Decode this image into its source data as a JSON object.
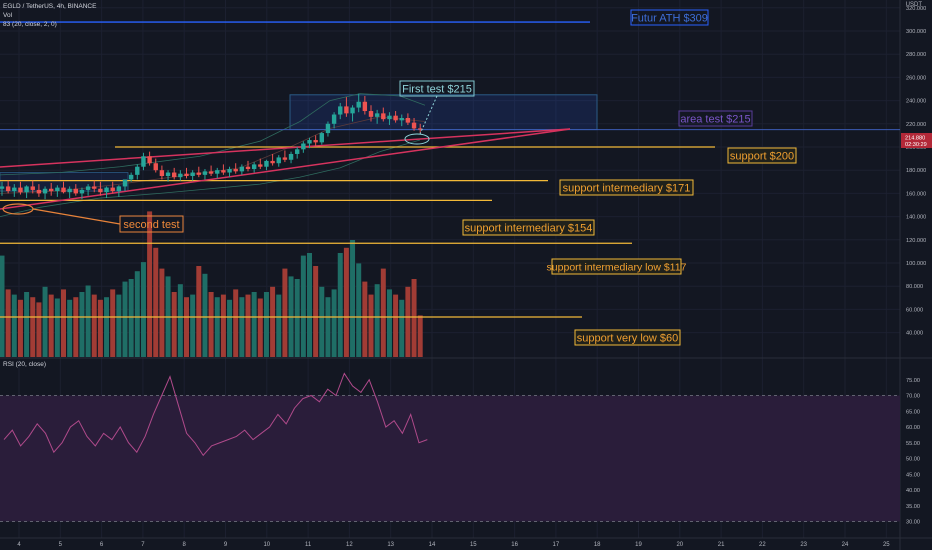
{
  "header": {
    "symbol_line": "EGLD / TetherUS, 4h, BINANCE",
    "vol_line": "Vol",
    "ma_line": "83 (20, close, 2, 0)"
  },
  "currency": "USDT",
  "rsi_label": "RSI (20, close)",
  "colors": {
    "background": "#131722",
    "bull": "#26a69a",
    "bear": "#ef5350",
    "vol_bull": "#1f6e66",
    "vol_bear": "#a13c35",
    "support_line": "#f2b938",
    "trend_line": "#d6335e",
    "ath_line": "#2962ff",
    "rsi_line": "#b04a8b",
    "rsi_band": "#2a1d3a",
    "box": "#2a5a85"
  },
  "price_axis": {
    "ticks": [
      "320.000",
      "300.000",
      "280.000",
      "260.000",
      "240.000",
      "220.000",
      "200.000",
      "180.000",
      "160.000",
      "140.000",
      "120.000",
      "100.000",
      "80.000",
      "60.000",
      "40.000"
    ],
    "current_price": "214.880",
    "countdown": "02:30:29"
  },
  "rsi_axis": {
    "ticks": [
      "75.00",
      "70.00",
      "65.00",
      "60.00",
      "55.00",
      "50.00",
      "45.00",
      "40.00",
      "35.00",
      "30.00"
    ]
  },
  "time_axis": {
    "ticks": [
      "4",
      "5",
      "6",
      "7",
      "8",
      "9",
      "10",
      "11",
      "12",
      "13",
      "14",
      "15",
      "16",
      "17",
      "18",
      "19",
      "20",
      "21",
      "22",
      "23",
      "24",
      "25"
    ]
  },
  "annotations": {
    "ath": "Futur ATH $309",
    "first_test": "First test $215",
    "area_test": "area test $215",
    "support_200": "support $200",
    "support_171": "support intermediary $171",
    "support_154": "support intermediary $154",
    "support_117": "support  intermediary low $117",
    "support_60": "support very low $60",
    "second_test": "second test"
  },
  "chart_data": {
    "type": "candlestick",
    "title": "EGLD / TetherUS, 4h, BINANCE",
    "timeframe": "4h",
    "x_labels": [
      "4",
      "5",
      "6",
      "7",
      "8",
      "9",
      "10",
      "11",
      "12",
      "13",
      "14",
      "15",
      "16",
      "17",
      "18",
      "19",
      "20",
      "21",
      "22",
      "23",
      "24",
      "25"
    ],
    "y_range": [
      30,
      325
    ],
    "candles": [
      {
        "o": 164,
        "h": 170,
        "l": 158,
        "c": 166
      },
      {
        "o": 166,
        "h": 171,
        "l": 160,
        "c": 162
      },
      {
        "o": 162,
        "h": 168,
        "l": 157,
        "c": 165
      },
      {
        "o": 165,
        "h": 170,
        "l": 159,
        "c": 161
      },
      {
        "o": 161,
        "h": 167,
        "l": 156,
        "c": 166
      },
      {
        "o": 166,
        "h": 171,
        "l": 160,
        "c": 163
      },
      {
        "o": 163,
        "h": 168,
        "l": 157,
        "c": 160
      },
      {
        "o": 160,
        "h": 166,
        "l": 155,
        "c": 164
      },
      {
        "o": 164,
        "h": 169,
        "l": 158,
        "c": 162
      },
      {
        "o": 162,
        "h": 167,
        "l": 157,
        "c": 165
      },
      {
        "o": 165,
        "h": 170,
        "l": 160,
        "c": 161
      },
      {
        "o": 161,
        "h": 166,
        "l": 156,
        "c": 164
      },
      {
        "o": 164,
        "h": 168,
        "l": 158,
        "c": 160
      },
      {
        "o": 160,
        "h": 165,
        "l": 155,
        "c": 163
      },
      {
        "o": 163,
        "h": 168,
        "l": 158,
        "c": 166
      },
      {
        "o": 166,
        "h": 171,
        "l": 161,
        "c": 164
      },
      {
        "o": 164,
        "h": 170,
        "l": 158,
        "c": 161
      },
      {
        "o": 161,
        "h": 166,
        "l": 156,
        "c": 165
      },
      {
        "o": 165,
        "h": 170,
        "l": 160,
        "c": 162
      },
      {
        "o": 162,
        "h": 167,
        "l": 157,
        "c": 166
      },
      {
        "o": 166,
        "h": 172,
        "l": 162,
        "c": 172
      },
      {
        "o": 172,
        "h": 178,
        "l": 170,
        "c": 176
      },
      {
        "o": 176,
        "h": 185,
        "l": 172,
        "c": 183
      },
      {
        "o": 183,
        "h": 195,
        "l": 180,
        "c": 192
      },
      {
        "o": 192,
        "h": 196,
        "l": 184,
        "c": 186
      },
      {
        "o": 186,
        "h": 190,
        "l": 178,
        "c": 180
      },
      {
        "o": 180,
        "h": 184,
        "l": 172,
        "c": 175
      },
      {
        "o": 175,
        "h": 180,
        "l": 170,
        "c": 178
      },
      {
        "o": 178,
        "h": 182,
        "l": 172,
        "c": 174
      },
      {
        "o": 174,
        "h": 180,
        "l": 171,
        "c": 177
      },
      {
        "o": 177,
        "h": 182,
        "l": 173,
        "c": 175
      },
      {
        "o": 175,
        "h": 180,
        "l": 171,
        "c": 178
      },
      {
        "o": 178,
        "h": 183,
        "l": 174,
        "c": 176
      },
      {
        "o": 176,
        "h": 181,
        "l": 172,
        "c": 179
      },
      {
        "o": 179,
        "h": 184,
        "l": 175,
        "c": 177
      },
      {
        "o": 177,
        "h": 182,
        "l": 173,
        "c": 180
      },
      {
        "o": 180,
        "h": 185,
        "l": 176,
        "c": 178
      },
      {
        "o": 178,
        "h": 183,
        "l": 174,
        "c": 181
      },
      {
        "o": 181,
        "h": 186,
        "l": 177,
        "c": 179
      },
      {
        "o": 179,
        "h": 185,
        "l": 176,
        "c": 183
      },
      {
        "o": 183,
        "h": 188,
        "l": 179,
        "c": 181
      },
      {
        "o": 181,
        "h": 187,
        "l": 178,
        "c": 185
      },
      {
        "o": 185,
        "h": 190,
        "l": 181,
        "c": 183
      },
      {
        "o": 183,
        "h": 189,
        "l": 180,
        "c": 188
      },
      {
        "o": 188,
        "h": 194,
        "l": 184,
        "c": 186
      },
      {
        "o": 186,
        "h": 193,
        "l": 183,
        "c": 191
      },
      {
        "o": 191,
        "h": 197,
        "l": 187,
        "c": 189
      },
      {
        "o": 189,
        "h": 196,
        "l": 186,
        "c": 194
      },
      {
        "o": 194,
        "h": 200,
        "l": 190,
        "c": 198
      },
      {
        "o": 198,
        "h": 205,
        "l": 195,
        "c": 203
      },
      {
        "o": 203,
        "h": 208,
        "l": 199,
        "c": 206
      },
      {
        "o": 206,
        "h": 210,
        "l": 201,
        "c": 204
      },
      {
        "o": 204,
        "h": 213,
        "l": 202,
        "c": 212
      },
      {
        "o": 212,
        "h": 222,
        "l": 209,
        "c": 220
      },
      {
        "o": 220,
        "h": 230,
        "l": 216,
        "c": 228
      },
      {
        "o": 228,
        "h": 238,
        "l": 224,
        "c": 235
      },
      {
        "o": 235,
        "h": 243,
        "l": 226,
        "c": 229
      },
      {
        "o": 229,
        "h": 236,
        "l": 222,
        "c": 234
      },
      {
        "o": 234,
        "h": 246,
        "l": 230,
        "c": 239
      },
      {
        "o": 239,
        "h": 244,
        "l": 228,
        "c": 231
      },
      {
        "o": 231,
        "h": 236,
        "l": 222,
        "c": 226
      },
      {
        "o": 226,
        "h": 232,
        "l": 220,
        "c": 229
      },
      {
        "o": 229,
        "h": 234,
        "l": 222,
        "c": 224
      },
      {
        "o": 224,
        "h": 230,
        "l": 219,
        "c": 227
      },
      {
        "o": 227,
        "h": 231,
        "l": 221,
        "c": 223
      },
      {
        "o": 223,
        "h": 228,
        "l": 218,
        "c": 225
      },
      {
        "o": 225,
        "h": 229,
        "l": 219,
        "c": 221
      },
      {
        "o": 221,
        "h": 225,
        "l": 214,
        "c": 216
      },
      {
        "o": 216,
        "h": 220,
        "l": 212,
        "c": 215
      }
    ],
    "volume": [
      78,
      52,
      48,
      44,
      50,
      46,
      42,
      54,
      48,
      45,
      52,
      44,
      46,
      50,
      55,
      48,
      44,
      46,
      52,
      48,
      58,
      60,
      66,
      73,
      112,
      84,
      68,
      62,
      50,
      56,
      46,
      48,
      70,
      64,
      50,
      46,
      48,
      44,
      52,
      46,
      48,
      50,
      45,
      50,
      54,
      48,
      68,
      62,
      60,
      78,
      80,
      70,
      54,
      46,
      52,
      80,
      84,
      90,
      72,
      58,
      48,
      56,
      68,
      52,
      48,
      44,
      54,
      60,
      32
    ],
    "rsi": [
      56,
      59,
      54,
      57,
      61,
      58,
      52,
      55,
      60,
      62,
      57,
      54,
      58,
      56,
      60,
      55,
      52,
      57,
      64,
      70,
      76,
      67,
      58,
      55,
      51,
      54,
      55,
      56,
      57,
      59,
      56,
      58,
      60,
      64,
      61,
      66,
      69,
      70,
      68,
      72,
      70,
      77,
      73,
      71,
      75,
      68,
      60,
      62,
      58,
      64,
      55,
      56
    ],
    "rsi_levels": [
      70,
      30
    ],
    "horizontal_levels": [
      309,
      215,
      200,
      171,
      154,
      117,
      60
    ],
    "box_range": [
      215,
      245
    ]
  }
}
